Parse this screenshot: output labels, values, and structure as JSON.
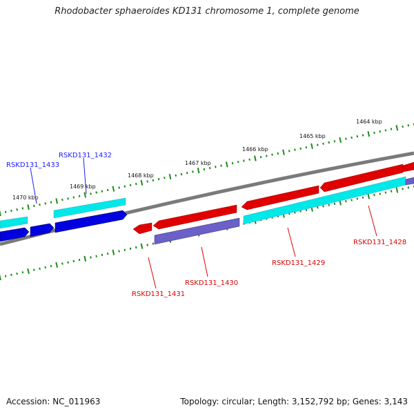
{
  "title": "Rhodobacter sphaeroides KD131 chromosome 1, complete genome",
  "footer": {
    "accession": "Accession: NC_011963",
    "summary": "Topology: circular; Length: 3,152,792 bp; Genes: 3,143"
  },
  "colors": {
    "backbone": "#7a7a7a",
    "tick": "#1a8a1a",
    "forward_gene_a": "#e00000",
    "forward_gene_b": "#00e8e8",
    "reverse_gene_a": "#0000e0",
    "reverse_gene_b": "#6a60c8",
    "label_blue": "#1a1aff",
    "label_red": "#dd0000"
  },
  "scale_labels": [
    "1470 kbp",
    "1469 kbp",
    "1468 kbp",
    "1467 kbp",
    "1466 kbp",
    "1465 kbp",
    "1464 kbp"
  ],
  "gene_labels": [
    {
      "id": "RSKD131_1433",
      "color": "label_blue"
    },
    {
      "id": "RSKD131_1432",
      "color": "label_blue"
    },
    {
      "id": "RSKD131_1431",
      "color": "label_red"
    },
    {
      "id": "RSKD131_1430",
      "color": "label_red"
    },
    {
      "id": "RSKD131_1429",
      "color": "label_red"
    },
    {
      "id": "RSKD131_1428",
      "color": "label_red"
    }
  ]
}
